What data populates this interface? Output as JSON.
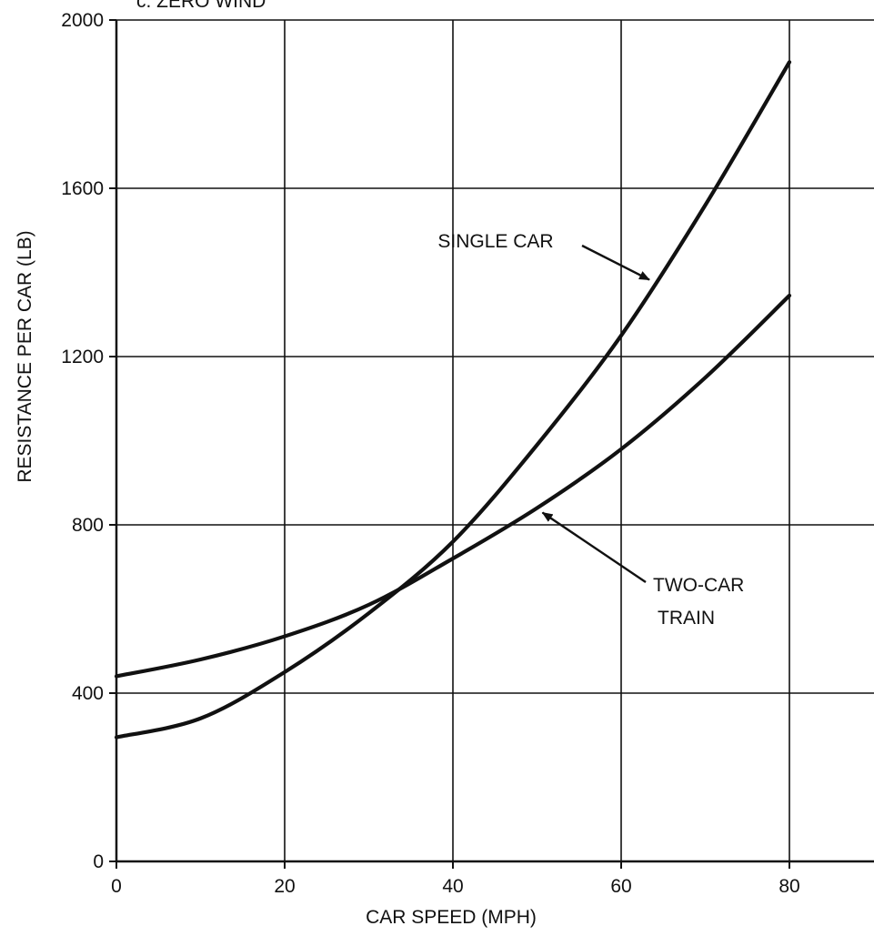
{
  "chart_data": {
    "type": "line",
    "title": "c. ZERO WIND",
    "xlabel": "CAR SPEED (MPH)",
    "ylabel": "RESISTANCE PER CAR (LB)",
    "xlim": [
      0,
      90
    ],
    "ylim": [
      0,
      2000
    ],
    "x_ticks": [
      "0",
      "20",
      "40",
      "60",
      "80"
    ],
    "y_ticks": [
      "0",
      "400",
      "800",
      "1200",
      "1600",
      "2000"
    ],
    "grid": true,
    "series": [
      {
        "name": "SINGLE CAR",
        "x": [
          0,
          10,
          20,
          30,
          40,
          50,
          60,
          70,
          80
        ],
        "y": [
          295,
          340,
          450,
          590,
          760,
          990,
          1250,
          1560,
          1900
        ]
      },
      {
        "name": "TWO-CAR TRAIN",
        "x": [
          0,
          10,
          20,
          30,
          40,
          50,
          60,
          70,
          80
        ],
        "y": [
          440,
          480,
          535,
          610,
          720,
          840,
          980,
          1150,
          1345
        ]
      }
    ],
    "annotations": [
      {
        "text": "SINGLE CAR",
        "series": 0,
        "points_to_x": 64
      },
      {
        "text": "TWO-CAR",
        "text2": "TRAIN",
        "series": 1,
        "points_to_x": 50
      }
    ],
    "colors": {
      "line": "#111111",
      "grid": "#111111",
      "background": "#ffffff"
    }
  }
}
